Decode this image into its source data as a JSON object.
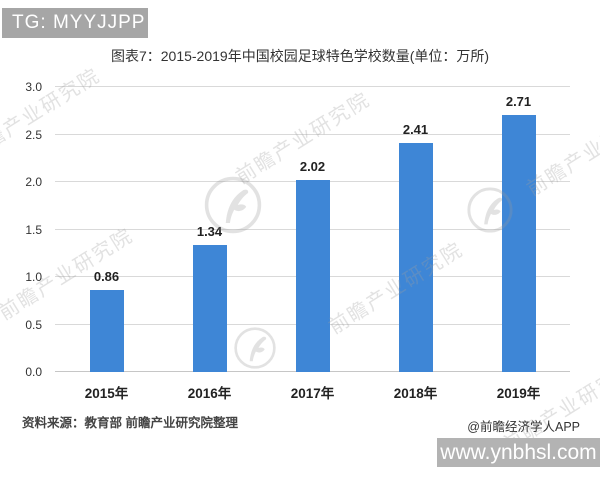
{
  "header_tag": {
    "label": "TG: MYYJJPP"
  },
  "chart_data": {
    "type": "bar",
    "title": "图表7：2015-2019年中国校园足球特色学校数量(单位：万所)",
    "categories": [
      "2015年",
      "2016年",
      "2017年",
      "2018年",
      "2019年"
    ],
    "values": [
      0.86,
      1.34,
      2.02,
      2.41,
      2.71
    ],
    "value_labels": [
      "0.86",
      "1.34",
      "2.02",
      "2.41",
      "2.71"
    ],
    "xlabel": "",
    "ylabel": "",
    "ylim": [
      0,
      3.0
    ],
    "yticks": [
      "0.0",
      "0.5",
      "1.0",
      "1.5",
      "2.0",
      "2.5",
      "3.0"
    ],
    "grid": true,
    "legend": "none",
    "bar_color": "#3e86d6"
  },
  "watermark": {
    "text": "前瞻产业研究院",
    "logo": "qianzhan-circle-logo"
  },
  "footer": {
    "source": "资料来源：教育部 前瞻产业研究院整理",
    "credit": "@前瞻经济学人APP",
    "website": "www.ynbhsl.com"
  },
  "colors": {
    "bar": "#3e86d6",
    "grid": "#d9d9d9",
    "axis_line": "#c6c6c6",
    "header_bg": "#a6a6a6",
    "site_box_bg": "#b3b3b3",
    "watermark": "#a0a0a0",
    "text": "#333333"
  }
}
